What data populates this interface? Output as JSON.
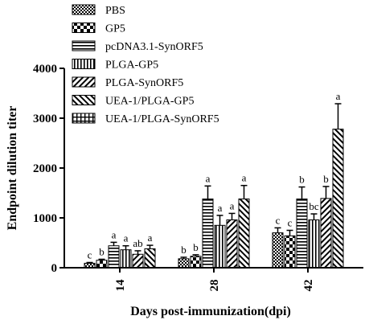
{
  "chart_data": {
    "type": "bar",
    "title": "",
    "xlabel": "Days post-immunization(dpi)",
    "ylabel": "Endpoint dilution titer",
    "ylim": [
      0,
      4000
    ],
    "yticks": [
      0,
      1000,
      2000,
      3000,
      4000
    ],
    "categories": [
      "14",
      "28",
      "42"
    ],
    "legend_position": "top",
    "series": [
      {
        "name": "PBS",
        "pattern": "checker-fine",
        "values": [
          90,
          180,
          700
        ],
        "errors": [
          15,
          30,
          100
        ],
        "sig": [
          "c",
          "b",
          "c"
        ]
      },
      {
        "name": "GP5",
        "pattern": "checker-coarse",
        "values": [
          150,
          230,
          640
        ],
        "errors": [
          20,
          30,
          110
        ],
        "sig": [
          "b",
          "b",
          "c"
        ]
      },
      {
        "name": "pcDNA3.1-SynORF5",
        "pattern": "horizontal-lines",
        "values": [
          440,
          1380,
          1380
        ],
        "errors": [
          70,
          260,
          240
        ],
        "sig": [
          "a",
          "a",
          "b"
        ]
      },
      {
        "name": "PLGA-GP5",
        "pattern": "vertical-lines",
        "values": [
          360,
          850,
          960
        ],
        "errors": [
          80,
          200,
          120
        ],
        "sig": [
          "a",
          "a",
          "bc"
        ]
      },
      {
        "name": "PLGA-SynORF5",
        "pattern": "diagonal-right",
        "values": [
          270,
          960,
          1390
        ],
        "errors": [
          70,
          130,
          240
        ],
        "sig": [
          "ab",
          "a",
          "b"
        ]
      },
      {
        "name": "UEA-1/PLGA-GP5",
        "pattern": "diagonal-left",
        "values": [
          380,
          1380,
          2780
        ],
        "errors": [
          70,
          270,
          510
        ],
        "sig": [
          "a",
          "a",
          "a"
        ]
      },
      {
        "name": "UEA-1/PLGA-SynORF5",
        "pattern": "grid",
        "values": [
          null,
          null,
          null
        ],
        "errors": [
          null,
          null,
          null
        ],
        "sig": [
          "",
          "",
          ""
        ]
      }
    ]
  }
}
